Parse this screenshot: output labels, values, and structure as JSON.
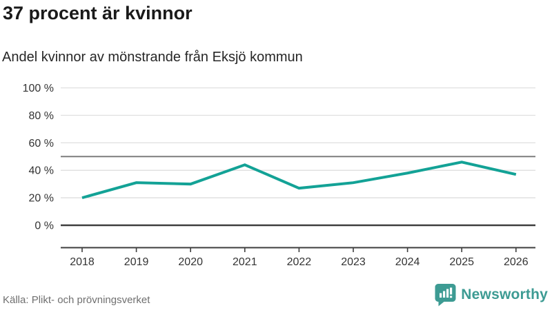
{
  "header": {
    "title": "37 procent är kvinnor",
    "subtitle": "Andel kvinnor av mönstrande från Eksjö kommun"
  },
  "chart_data": {
    "type": "line",
    "title": "37 procent är kvinnor",
    "subtitle": "Andel kvinnor av mönstrande från Eksjö kommun",
    "x": [
      "2018",
      "2019",
      "2020",
      "2021",
      "2022",
      "2023",
      "2024",
      "2025",
      "2026"
    ],
    "series": [
      {
        "name": "Andel kvinnor av mönstrande",
        "values": [
          20,
          31,
          30,
          44,
          27,
          31,
          38,
          46,
          37
        ]
      }
    ],
    "xlabel": "",
    "ylabel": "",
    "ylim": [
      0,
      100
    ],
    "yticks": [
      0,
      20,
      40,
      60,
      80,
      100
    ],
    "ytick_suffix": " %",
    "benchmark_line": 50,
    "grid": true,
    "legend_position": "none",
    "line_color": "#13a296"
  },
  "footer": {
    "source": "Källa: Plikt- och prövningsverket",
    "logo_text": "Newsworthy"
  },
  "colors": {
    "accent_teal": "#13a296",
    "logo_teal": "#3d9b93",
    "grid_light": "#e1e1e1",
    "benchmark_gray": "#7d7d7d",
    "axis_dark": "#3d3d3d",
    "tick_label": "#333333",
    "source_gray": "#6f6f6f"
  }
}
